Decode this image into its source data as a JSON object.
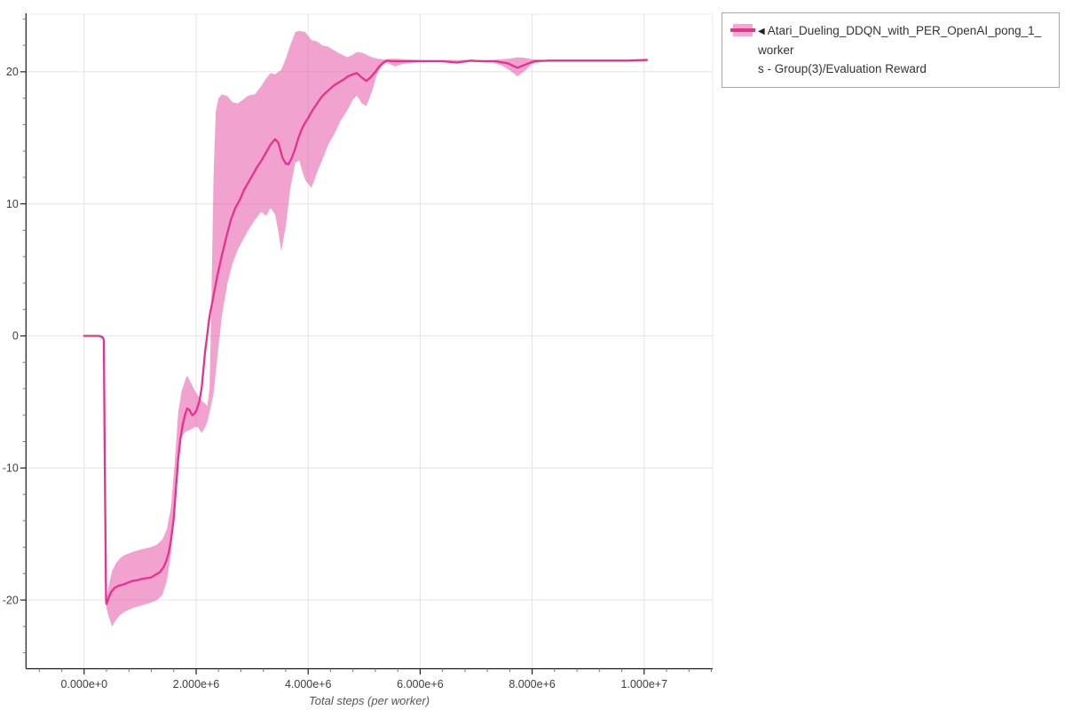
{
  "figure": {
    "background": "#ffffff",
    "plot_bg": "#ffffff",
    "gridline_color": "#e4e4e4",
    "frame_edge_color": "#e8e8e8",
    "axis_color": "#1a1a1a",
    "major_tick_color": "#222222",
    "minor_tick_color": "#777777",
    "tick_label_color": "#3d3d3d"
  },
  "legend": {
    "border_color": "#a8a8a8",
    "collapse_arrow": "◀",
    "series": [
      {
        "label": "Atari_Dueling_DDQN_with_PER_OpenAI_pong_1_workers - Group(3)/Evaluation Reward",
        "line1": "Atari_Dueling_DDQN_with_PER_OpenAI_pong_1_worker",
        "line2": "s - Group(3)/Evaluation Reward",
        "band_color": "#f3a9d1",
        "line_color": "#e8308f"
      }
    ]
  },
  "chart_data": {
    "type": "line",
    "title": "",
    "xlabel": "Total steps (per worker)",
    "ylabel": "",
    "x_axis": {
      "range": [
        -1040000,
        11230000
      ],
      "major_ticks": [
        0,
        2000000,
        4000000,
        6000000,
        8000000,
        10000000
      ],
      "major_tick_labels": [
        "0.000e+0",
        "2.000e+6",
        "4.000e+6",
        "6.000e+6",
        "8.000e+6",
        "1.000e+7"
      ],
      "minor_tick_step": 400000
    },
    "y_axis": {
      "range": [
        -25.2,
        24.7
      ],
      "major_ticks": [
        -20,
        -10,
        0,
        10,
        20
      ],
      "major_tick_labels": [
        "-20",
        "-10",
        "0",
        "10",
        "20"
      ],
      "minor_tick_step": 2
    },
    "grid": true,
    "legend_position": "outside-top-right",
    "series_name": "Atari_Dueling_DDQN_with_PER_OpenAI_pong_1_workers - Group(3)/Evaluation Reward",
    "line_color": "#e8308f",
    "band_fill_rgba": [
      231,
      79,
      164,
      0.53
    ],
    "line": {
      "x": [
        0,
        150000,
        270000,
        330000,
        352000,
        370000,
        392000,
        400000,
        440000,
        480000,
        550000,
        630000,
        720000,
        800000,
        870000,
        950000,
        1030000,
        1110000,
        1190000,
        1270000,
        1350000,
        1420000,
        1470000,
        1510000,
        1550000,
        1600000,
        1640000,
        1680000,
        1720000,
        1760000,
        1800000,
        1840000,
        1880000,
        1930000,
        1970000,
        2010000,
        2060000,
        2100000,
        2160000,
        2240000,
        2300000,
        2380000,
        2460000,
        2540000,
        2620000,
        2700000,
        2780000,
        2860000,
        2930000,
        3010000,
        3090000,
        3170000,
        3250000,
        3330000,
        3410000,
        3470000,
        3540000,
        3600000,
        3650000,
        3710000,
        3770000,
        3820000,
        3880000,
        3940000,
        4000000,
        4080000,
        4160000,
        4240000,
        4310000,
        4390000,
        4470000,
        4550000,
        4630000,
        4710000,
        4790000,
        4870000,
        4950000,
        5040000,
        5120000,
        5200000,
        5270000,
        5340000,
        5410000,
        5500000,
        5650000,
        5800000,
        6000000,
        6200000,
        6400000,
        6660000,
        6900000,
        7100000,
        7340000,
        7560000,
        7740000,
        7880000,
        8040000,
        8300000,
        8640000,
        9000000,
        9400000,
        9700000,
        10050000
      ],
      "y": [
        0,
        0,
        0,
        -0.1,
        -0.3,
        -10,
        -20.0,
        -20.3,
        -19.8,
        -19.4,
        -19.05,
        -18.9,
        -18.8,
        -18.65,
        -18.55,
        -18.5,
        -18.4,
        -18.35,
        -18.3,
        -18.1,
        -17.9,
        -17.5,
        -17.0,
        -16.4,
        -15.5,
        -13.8,
        -11.5,
        -9.3,
        -7.8,
        -6.7,
        -6.0,
        -5.5,
        -5.6,
        -6.0,
        -5.9,
        -5.6,
        -4.9,
        -3.9,
        -1.2,
        1.5,
        2.8,
        4.6,
        6.1,
        7.5,
        8.8,
        9.7,
        10.3,
        11.1,
        11.6,
        12.2,
        12.8,
        13.3,
        13.9,
        14.5,
        14.9,
        14.6,
        13.5,
        13.05,
        13.0,
        13.5,
        14.2,
        14.9,
        15.6,
        16.1,
        16.5,
        17.1,
        17.6,
        18.1,
        18.4,
        18.7,
        19.0,
        19.2,
        19.4,
        19.65,
        19.8,
        19.9,
        19.6,
        19.3,
        19.6,
        20.0,
        20.4,
        20.7,
        20.85,
        20.8,
        20.8,
        20.8,
        20.8,
        20.8,
        20.8,
        20.7,
        20.85,
        20.8,
        20.8,
        20.65,
        20.3,
        20.55,
        20.8,
        20.85,
        20.85,
        20.85,
        20.85,
        20.85,
        20.9
      ]
    },
    "band": {
      "x": [
        400000,
        440000,
        500000,
        570000,
        650000,
        720000,
        870000,
        1030000,
        1190000,
        1300000,
        1400000,
        1480000,
        1550000,
        1620000,
        1680000,
        1740000,
        1800000,
        1840000,
        1900000,
        1970000,
        2030000,
        2100000,
        2150000,
        2200000,
        2240000,
        2270000,
        2310000,
        2350000,
        2400000,
        2460000,
        2560000,
        2650000,
        2740000,
        2840000,
        2930000,
        3050000,
        3160000,
        3250000,
        3330000,
        3410000,
        3470000,
        3520000,
        3600000,
        3680000,
        3770000,
        3840000,
        3900000,
        3950000,
        4060000,
        4160000,
        4250000,
        4360000,
        4470000,
        4580000,
        4700000,
        4800000,
        4870000,
        4960000,
        5040000,
        5140000,
        5230000,
        5310000,
        5400000,
        5550000,
        5700000,
        6000000,
        6500000,
        7000000,
        7300000,
        7450000,
        7600000,
        7740000,
        7880000,
        8000000,
        8200000,
        9000000,
        10050000
      ],
      "lower": [
        -20.6,
        -21.3,
        -22.0,
        -21.5,
        -21.1,
        -20.9,
        -20.6,
        -20.4,
        -20.2,
        -20.0,
        -19.6,
        -18.5,
        -16.5,
        -12.5,
        -8.8,
        -7.6,
        -7.3,
        -7.2,
        -7.1,
        -6.9,
        -6.9,
        -7.35,
        -7.0,
        -6.5,
        -5.8,
        -5.2,
        -4.4,
        -2.8,
        -0.8,
        1.5,
        4.0,
        5.5,
        6.5,
        7.3,
        8.0,
        8.8,
        9.4,
        9.1,
        9.7,
        9.2,
        7.8,
        6.4,
        8.3,
        11.1,
        13.1,
        13.3,
        12.4,
        11.8,
        11.2,
        12.4,
        13.3,
        14.5,
        15.3,
        16.3,
        17.1,
        17.9,
        18.2,
        17.6,
        17.4,
        18.5,
        19.8,
        20.4,
        20.7,
        20.4,
        20.6,
        20.75,
        20.75,
        20.75,
        20.7,
        20.5,
        20.1,
        19.65,
        20.1,
        20.6,
        20.8,
        20.8,
        20.8
      ],
      "upper": [
        -19.9,
        -18.9,
        -17.8,
        -17.2,
        -16.8,
        -16.6,
        -16.35,
        -16.15,
        -16.0,
        -15.8,
        -15.4,
        -14.6,
        -13.0,
        -9.5,
        -5.8,
        -4.2,
        -3.4,
        -3.0,
        -3.5,
        -4.1,
        -4.5,
        -4.9,
        -5.1,
        -5.3,
        -4.0,
        2.0,
        12.0,
        17.0,
        18.0,
        18.3,
        18.15,
        17.7,
        17.6,
        17.9,
        18.2,
        18.3,
        18.9,
        19.5,
        19.9,
        19.8,
        20.0,
        20.15,
        21.0,
        22.0,
        23.0,
        23.1,
        23.05,
        23.0,
        22.4,
        22.3,
        22.0,
        21.9,
        21.6,
        21.35,
        21.1,
        21.3,
        21.5,
        21.45,
        21.3,
        21.1,
        21.0,
        20.95,
        20.95,
        21.0,
        20.95,
        20.9,
        20.9,
        20.9,
        20.9,
        20.95,
        21.0,
        21.1,
        21.05,
        20.95,
        20.9,
        20.9,
        20.9
      ]
    }
  }
}
